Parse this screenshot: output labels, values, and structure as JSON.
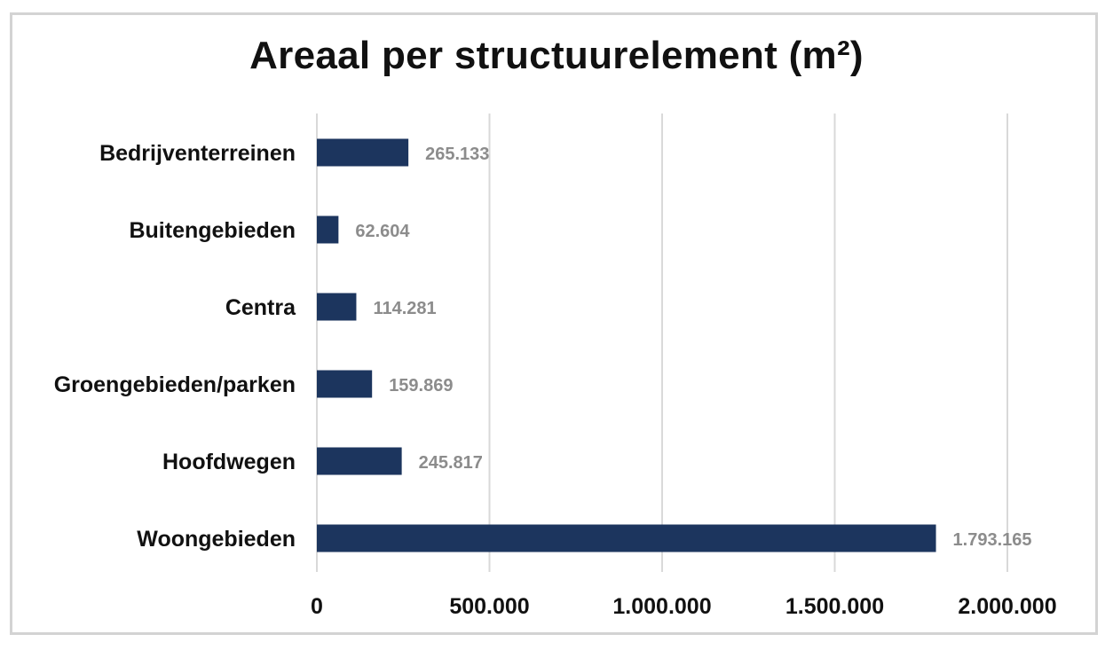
{
  "chart_data": {
    "type": "bar",
    "orientation": "horizontal",
    "title": "Areaal per structuurelement (m²)",
    "xlabel": "",
    "ylabel": "",
    "categories": [
      "Bedrijventerreinen",
      "Buitengebieden",
      "Centra",
      "Groengebieden/parken",
      "Hoofdwegen",
      "Woongebieden"
    ],
    "values": [
      265133,
      62604,
      114281,
      159869,
      245817,
      1793165
    ],
    "data_labels": [
      "265.133",
      "62.604",
      "114.281",
      "159.869",
      "245.817",
      "1.793.165"
    ],
    "xlim": [
      0,
      2000000
    ],
    "ticks": [
      0,
      500000,
      1000000,
      1500000,
      2000000
    ],
    "tick_labels": [
      "0",
      "500.000",
      "1.000.000",
      "1.500.000",
      "2.000.000"
    ],
    "grid": "vertical",
    "bar_color": "#1c355e",
    "grid_color": "#d9d9d9",
    "data_label_color": "#8c8c8c"
  }
}
